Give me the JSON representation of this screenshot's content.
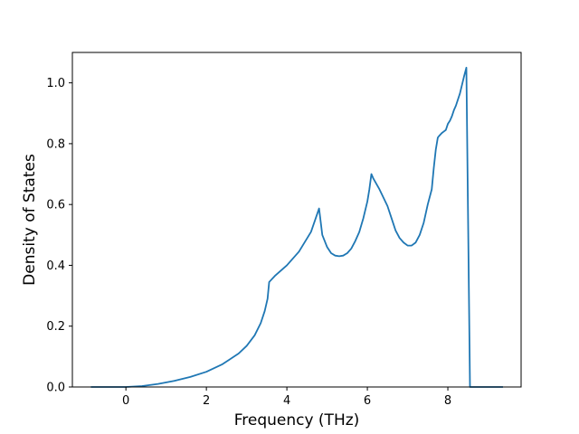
{
  "chart_data": {
    "type": "line",
    "title": "",
    "xlabel": "Frequency (THz)",
    "ylabel": "Density of States",
    "xlim": [
      -1.33,
      9.82
    ],
    "ylim": [
      0.0,
      1.1
    ],
    "xticks": [
      0,
      2,
      4,
      6,
      8
    ],
    "xtick_labels": [
      "0",
      "2",
      "4",
      "6",
      "8"
    ],
    "yticks": [
      0.0,
      0.2,
      0.4,
      0.6,
      0.8,
      1.0
    ],
    "ytick_labels": [
      "0.0",
      "0.2",
      "0.4",
      "0.6",
      "0.8",
      "1.0"
    ],
    "grid": false,
    "line_color": "#1f77b4",
    "series": [
      {
        "x": [
          -0.87,
          0.0,
          0.4,
          0.8,
          1.2,
          1.6,
          2.0,
          2.4,
          2.8,
          3.0,
          3.2,
          3.35,
          3.45,
          3.52,
          3.56,
          3.7,
          4.0,
          4.3,
          4.6,
          4.8,
          4.88,
          5.0,
          5.1,
          5.2,
          5.3,
          5.4,
          5.5,
          5.6,
          5.7,
          5.8,
          5.9,
          6.0,
          6.05,
          6.1,
          6.15,
          6.3,
          6.5,
          6.6,
          6.7,
          6.8,
          6.9,
          7.0,
          7.1,
          7.2,
          7.3,
          7.4,
          7.5,
          7.6,
          7.65,
          7.7,
          7.75,
          7.78,
          7.85,
          7.9,
          7.95,
          8.0,
          8.05,
          8.1,
          8.15,
          8.2,
          8.3,
          8.4,
          8.46,
          8.55,
          9.37
        ],
        "y": [
          0.0,
          0.0,
          0.003,
          0.01,
          0.02,
          0.033,
          0.05,
          0.075,
          0.11,
          0.135,
          0.17,
          0.21,
          0.25,
          0.29,
          0.345,
          0.365,
          0.4,
          0.445,
          0.51,
          0.587,
          0.5,
          0.46,
          0.44,
          0.432,
          0.43,
          0.432,
          0.44,
          0.455,
          0.48,
          0.51,
          0.555,
          0.61,
          0.65,
          0.7,
          0.685,
          0.65,
          0.595,
          0.555,
          0.515,
          0.49,
          0.475,
          0.465,
          0.465,
          0.475,
          0.5,
          0.54,
          0.6,
          0.65,
          0.72,
          0.78,
          0.82,
          0.825,
          0.835,
          0.84,
          0.845,
          0.865,
          0.875,
          0.89,
          0.91,
          0.925,
          0.965,
          1.02,
          1.05,
          0.0,
          0.0
        ]
      }
    ]
  }
}
